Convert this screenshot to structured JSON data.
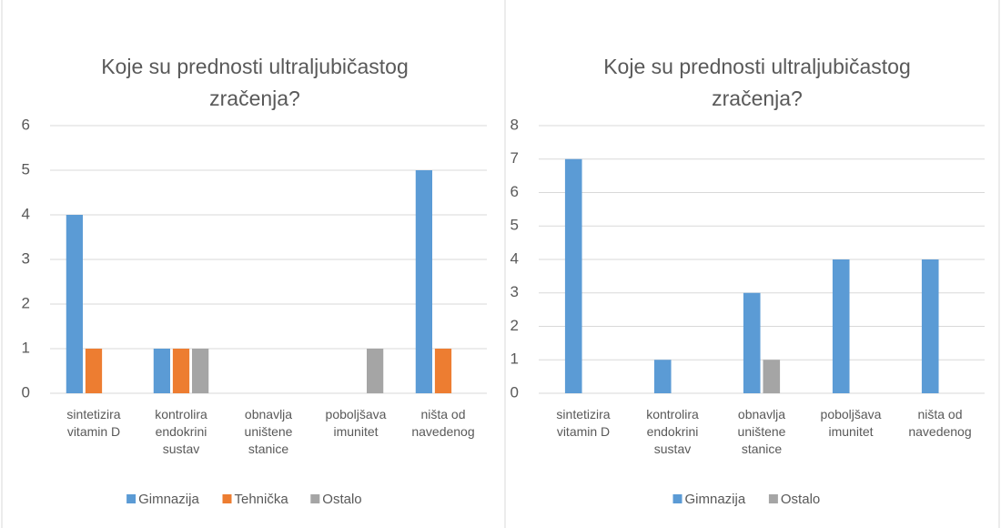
{
  "chart_data": [
    {
      "type": "bar",
      "title": "Koje su prednosti ultraljubičastog zračenja?",
      "categories": [
        "sintetizira vitamin D",
        "kontrolira endokrini sustav",
        "obnavlja uništene stanice",
        "poboljšava imunitet",
        "ništa od navedenog"
      ],
      "series": [
        {
          "name": "Gimnazija",
          "color": "#5b9bd5",
          "values": [
            4,
            1,
            0,
            0,
            5
          ]
        },
        {
          "name": "Tehnička",
          "color": "#ed7d31",
          "values": [
            1,
            1,
            0,
            0,
            1
          ]
        },
        {
          "name": "Ostalo",
          "color": "#a5a5a5",
          "values": [
            0,
            1,
            0,
            1,
            0
          ]
        }
      ],
      "ylim": [
        0,
        6
      ],
      "yticks": [
        0,
        1,
        2,
        3,
        4,
        5,
        6
      ],
      "grid": true,
      "legend": "bottom"
    },
    {
      "type": "bar",
      "title": "Koje su prednosti ultraljubičastog zračenja?",
      "categories": [
        "sintetizira vitamin D",
        "kontrolira endokrini sustav",
        "obnavlja uništene stanice",
        "poboljšava imunitet",
        "ništa od navedenog"
      ],
      "series": [
        {
          "name": "Gimnazija",
          "color": "#5b9bd5",
          "values": [
            7,
            1,
            3,
            4,
            4
          ]
        },
        {
          "name": "Ostalo",
          "color": "#a5a5a5",
          "values": [
            0,
            0,
            1,
            0,
            0
          ]
        }
      ],
      "ylim": [
        0,
        8
      ],
      "yticks": [
        0,
        1,
        2,
        3,
        4,
        5,
        6,
        7,
        8
      ],
      "grid": true,
      "legend": "bottom"
    }
  ]
}
